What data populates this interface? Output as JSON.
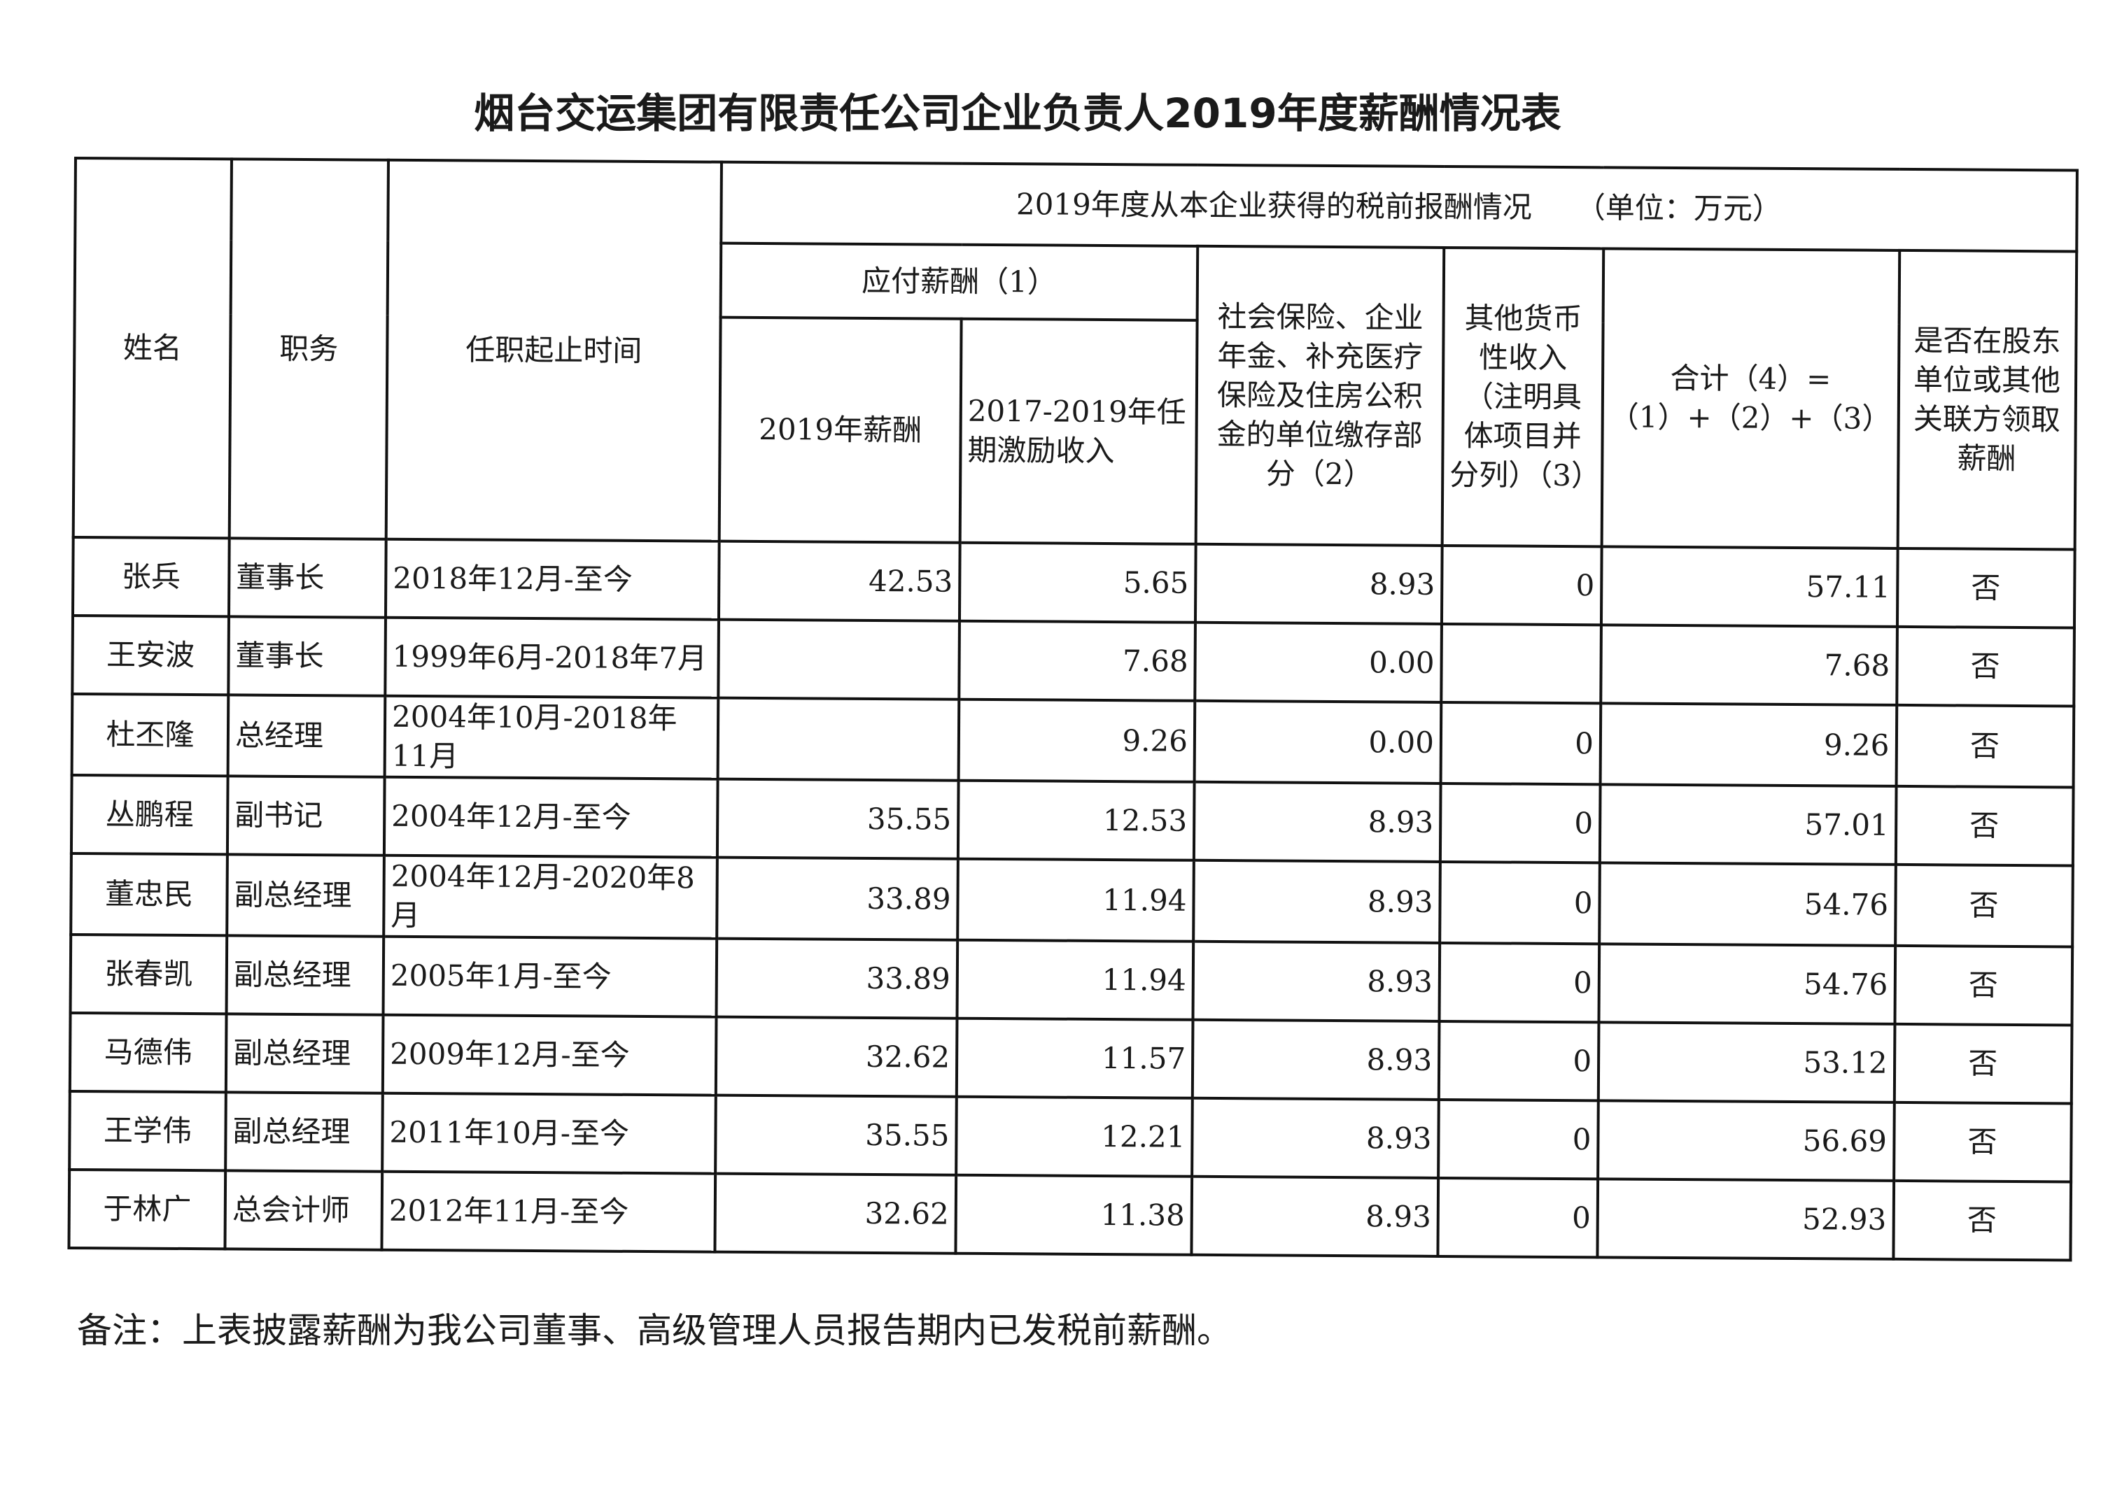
{
  "title": "烟台交运集团有限责任公司企业负责人2019年度薪酬情况表",
  "headers": {
    "name": "姓名",
    "position": "职务",
    "tenure": "任职起止时间",
    "group": "2019年度从本企业获得的税前报酬情况　　（单位：万元）",
    "payable": "应付薪酬（1）",
    "salary_2019": "2019年薪酬",
    "incentive": "2017-2019年任期激励收入",
    "social": "社会保险、企业年金、补充医疗保险及住房公积金的单位缴存部分（2）",
    "other": "其他货币性收入（注明具体项目并分列）（3）",
    "total": "合计（4）=（1）+（2）+（3）",
    "related": "是否在股东单位或其他关联方领取薪酬"
  },
  "rows": [
    {
      "name": "张兵",
      "position": "董事长",
      "tenure": "2018年12月-至今",
      "salary": "42.53",
      "incentive": "5.65",
      "social": "8.93",
      "other": "0",
      "total": "57.11",
      "related": "否"
    },
    {
      "name": "王安波",
      "position": "董事长",
      "tenure": "1999年6月-2018年7月",
      "salary": "",
      "incentive": "7.68",
      "social": "0.00",
      "other": "",
      "total": "7.68",
      "related": "否"
    },
    {
      "name": "杜丕隆",
      "position": "总经理",
      "tenure": "2004年10月-2018年11月",
      "salary": "",
      "incentive": "9.26",
      "social": "0.00",
      "other": "0",
      "total": "9.26",
      "related": "否"
    },
    {
      "name": "丛鹏程",
      "position": "副书记",
      "tenure": "2004年12月-至今",
      "salary": "35.55",
      "incentive": "12.53",
      "social": "8.93",
      "other": "0",
      "total": "57.01",
      "related": "否"
    },
    {
      "name": "董忠民",
      "position": "副总经理",
      "tenure": "2004年12月-2020年8月",
      "salary": "33.89",
      "incentive": "11.94",
      "social": "8.93",
      "other": "0",
      "total": "54.76",
      "related": "否"
    },
    {
      "name": "张春凯",
      "position": "副总经理",
      "tenure": "2005年1月-至今",
      "salary": "33.89",
      "incentive": "11.94",
      "social": "8.93",
      "other": "0",
      "total": "54.76",
      "related": "否"
    },
    {
      "name": "马德伟",
      "position": "副总经理",
      "tenure": "2009年12月-至今",
      "salary": "32.62",
      "incentive": "11.57",
      "social": "8.93",
      "other": "0",
      "total": "53.12",
      "related": "否"
    },
    {
      "name": "王学伟",
      "position": "副总经理",
      "tenure": "2011年10月-至今",
      "salary": "35.55",
      "incentive": "12.21",
      "social": "8.93",
      "other": "0",
      "total": "56.69",
      "related": "否"
    },
    {
      "name": "于林广",
      "position": "总会计师",
      "tenure": "2012年11月-至今",
      "salary": "32.62",
      "incentive": "11.38",
      "social": "8.93",
      "other": "0",
      "total": "52.93",
      "related": "否"
    }
  ],
  "note": "备注：上表披露薪酬为我公司董事、高级管理人员报告期内已发税前薪酬。"
}
